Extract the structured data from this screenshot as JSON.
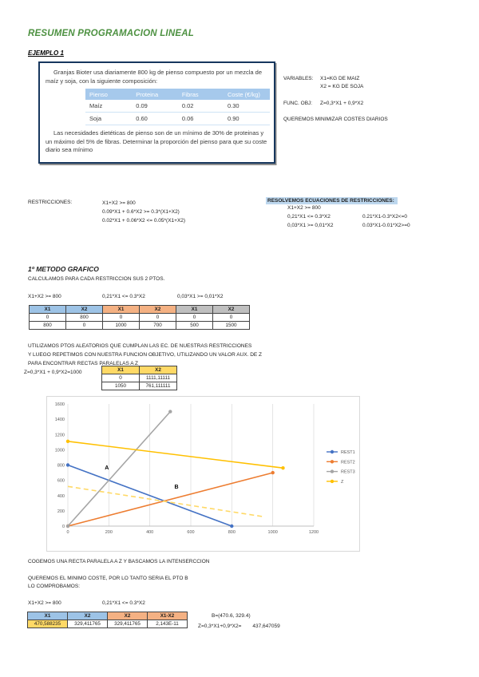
{
  "page": {
    "title": "RESUMEN PROGRAMACION LINEAL",
    "example_label": "EJEMPLO 1"
  },
  "problem_box": {
    "intro": "Granjas Bioter usa diariamente 800 kg de pienso compuesto por un mezcla de maíz y soja, con la siguiente composición:",
    "table": {
      "headers": [
        "Pienso",
        "Proteina",
        "Fibras",
        "Coste (€/kg)"
      ],
      "rows": [
        [
          "Maíz",
          "0.09",
          "0.02",
          "0.30"
        ],
        [
          "Soja",
          "0.60",
          "0.06",
          "0.90"
        ]
      ]
    },
    "outro": "Las necesidades dietéticas de pienso son de un mínimo de 30% de proteinas y un máximo del 5% de fibras. Determinar la proporción del pienso para que su coste diario sea mínimo"
  },
  "variables": {
    "label": "VARIABLES:",
    "x1": "X1=KG DE MAIZ",
    "x2": "X2 = KG DE SOJA",
    "func_label": "FUNC. OBJ:",
    "func": "Z=0,3*X1 + 0,9*X2",
    "goal": "QUEREMOS MINIMIZAR COSTES DIARIOS"
  },
  "restrictions": {
    "label": "RESTRICCIONES:",
    "line1": "X1+X2 >= 800",
    "line2": "0.09*X1 + 0.6*X2 >= 0.3*(X1+X2)",
    "line3": "0.02*X1 + 0.06*X2 <= 0.05*(X1+X2)"
  },
  "solve": {
    "heading": "RESOLVEMOS ECUACIONES DE RESTRICCIONES:",
    "line1": "X1+X2 >= 800",
    "left2": "0,21*X1 <= 0.3*X2",
    "right2": "0.21*X1-0.3*X2<=0",
    "left3": "0,03*X1 >= 0,01*X2",
    "right3": "0.03*X1-0.01*X2>=0"
  },
  "method": {
    "heading": "1º METODO GRAFICO",
    "sub": "CALCULAMOS PARA CADA RESTRICCION SUS 2 PTOS.",
    "eq1": "X1+X2 >= 800",
    "eq2": "0,21*X1 <= 0.3*X2",
    "eq3": "0,03*X1 >= 0,01*X2"
  },
  "points_tables": [
    {
      "headers": [
        "X1",
        "X2"
      ],
      "rows": [
        [
          "0",
          "800"
        ],
        [
          "800",
          "0"
        ]
      ]
    },
    {
      "headers": [
        "X1",
        "X2"
      ],
      "rows": [
        [
          "0",
          "0"
        ],
        [
          "1000",
          "700"
        ]
      ]
    },
    {
      "headers": [
        "X1",
        "X2"
      ],
      "rows": [
        [
          "0",
          "0"
        ],
        [
          "500",
          "1500"
        ]
      ]
    }
  ],
  "aux": {
    "line1": "UTILIZAMOS PTOS ALEATORIOS QUE CUMPLAN LAS EC. DE NUESTRAS RESTRICCIONES",
    "line2": "Y LUEGO REPETIMOS CON NUESTRA FUNCION OBJETIVO, UTILIZANDO UN VALOR AUX. DE Z",
    "line3": "PARA ENCONTRAR RECTAS PARALELAS A Z",
    "z_label": "Z=0,3*X1 + 0,9*X2=1000",
    "table": {
      "headers": [
        "X1",
        "X2"
      ],
      "rows": [
        [
          "0",
          "1111,11111"
        ],
        [
          "1050",
          "761,111111"
        ]
      ]
    }
  },
  "chart_data": {
    "type": "line",
    "title": "",
    "xlabel": "",
    "ylabel": "",
    "xlim": [
      0,
      1200
    ],
    "ylim": [
      0,
      1600
    ],
    "x_ticks": [
      0,
      200,
      400,
      600,
      800,
      1000,
      1200
    ],
    "y_ticks": [
      0,
      200,
      400,
      600,
      800,
      1000,
      1200,
      1400,
      1600
    ],
    "grid": "vertical-only",
    "legend_position": "right",
    "series": [
      {
        "name": "REST1",
        "color": "#4472C4",
        "dash": false,
        "markers": true,
        "points": [
          [
            0,
            800
          ],
          [
            800,
            0
          ]
        ]
      },
      {
        "name": "REST2",
        "color": "#ED7D31",
        "dash": false,
        "markers": true,
        "points": [
          [
            0,
            0
          ],
          [
            1000,
            700
          ]
        ]
      },
      {
        "name": "REST3",
        "color": "#A5A5A5",
        "dash": false,
        "markers": true,
        "points": [
          [
            0,
            0
          ],
          [
            500,
            1500
          ]
        ]
      },
      {
        "name": "Z",
        "color": "#FFC000",
        "dash": false,
        "markers": true,
        "points": [
          [
            0,
            1111.11111
          ],
          [
            1050,
            761.111111
          ]
        ]
      },
      {
        "name": "",
        "color": "#FFD966",
        "dash": true,
        "markers": false,
        "legend": false,
        "points": [
          [
            0,
            520
          ],
          [
            950,
            125
          ]
        ]
      }
    ],
    "annotations": [
      {
        "text": "A",
        "x": 180,
        "y": 745
      },
      {
        "text": "B",
        "x": 520,
        "y": 490
      }
    ]
  },
  "conclusion": {
    "line1": "COGEMOS UNA RECTA PARALELA A Z Y BASCAMOS LA INTENSERCCION",
    "line2": "QUEREMOS EL MINIMO COSTE, POR LO TANTO SERIA EL PTO B",
    "line3": "LO COMPROBAMOS:",
    "eq1": "X1+X2 >= 800",
    "eq2": "0,21*X1 <= 0.3*X2",
    "table": {
      "headers": [
        "X1",
        "X2",
        "X2",
        "X1-X2"
      ],
      "values": [
        "470,588235",
        "329,411765",
        "329,411765",
        "2,143E-11"
      ]
    },
    "point_b": "B=(470.6, 329.4)",
    "z_result_label": "Z=0,3*X1+0,9*X2=",
    "z_result_value": "437,647059"
  },
  "colors": {
    "title_green": "#4D9141",
    "box_border": "#17375E",
    "feed_header_blue": "#A6C9EC",
    "highlight_blue": "#BDD7EE",
    "table_header_blue": "#9DC3E6",
    "table_header_orange": "#F4B183",
    "table_header_gray": "#BFBFBF",
    "table_header_yellow": "#FFD966",
    "series_blue": "#4472C4",
    "series_orange": "#ED7D31",
    "series_gray": "#A5A5A5",
    "series_yellow": "#FFC000"
  }
}
